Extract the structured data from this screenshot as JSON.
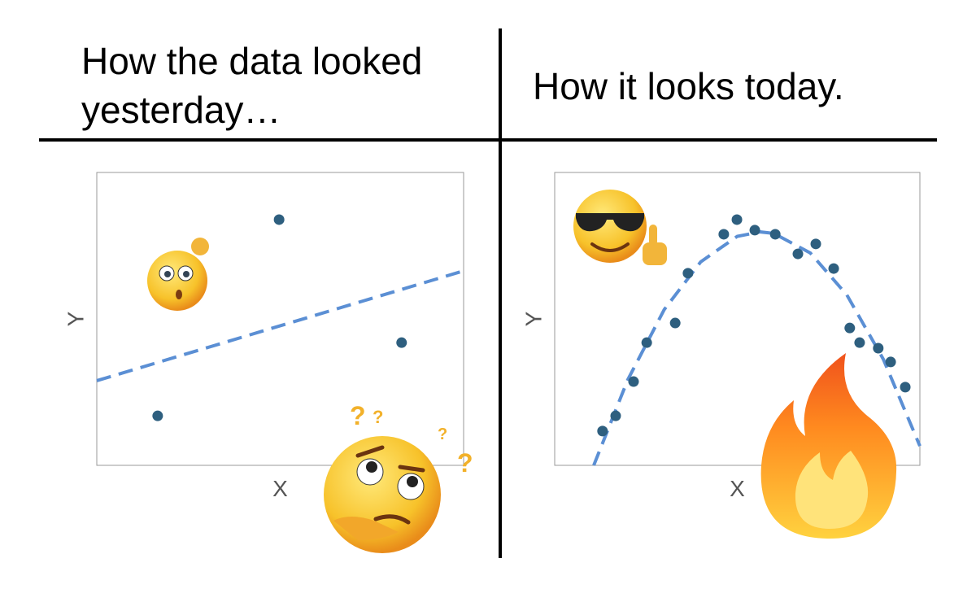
{
  "chart_data": [
    {
      "type": "scatter",
      "title": "How the data looked yesterday…",
      "x_label": "X",
      "y_label": "Y",
      "color": "#2e5f7f",
      "fit_color": "#5b8fd4",
      "xlim": [
        0,
        10
      ],
      "ylim": [
        0,
        10
      ],
      "x": [
        4.97,
        8.31,
        1.66
      ],
      "y": [
        8.39,
        4.19,
        1.69
      ],
      "fit": {
        "x": [
          0,
          10
        ],
        "y": [
          2.89,
          6.64
        ]
      }
    },
    {
      "type": "scatter",
      "title": "How it looks today.",
      "x_label": "X",
      "y_label": "Y",
      "color": "#2e5f7f",
      "fit_color": "#5b8fd4",
      "xlim": [
        0,
        10
      ],
      "ylim": [
        0,
        10
      ],
      "x": [
        1.31,
        1.67,
        2.16,
        2.52,
        3.3,
        3.65,
        4.63,
        4.99,
        5.48,
        6.04,
        6.66,
        7.15,
        7.64,
        8.08,
        8.35,
        8.86,
        9.2,
        9.6
      ],
      "y": [
        1.17,
        1.69,
        2.86,
        4.19,
        4.86,
        6.56,
        7.89,
        8.39,
        8.03,
        7.89,
        7.22,
        7.56,
        6.72,
        4.69,
        4.19,
        4.0,
        3.53,
        2.67
      ],
      "fit": {
        "x": [
          1.07,
          2,
          3,
          4,
          5,
          5.63,
          6,
          7,
          8,
          9,
          10
        ],
        "y": [
          0,
          2.92,
          5.32,
          6.95,
          7.82,
          7.97,
          7.92,
          7.25,
          5.82,
          3.62,
          0.66
        ]
      }
    }
  ]
}
